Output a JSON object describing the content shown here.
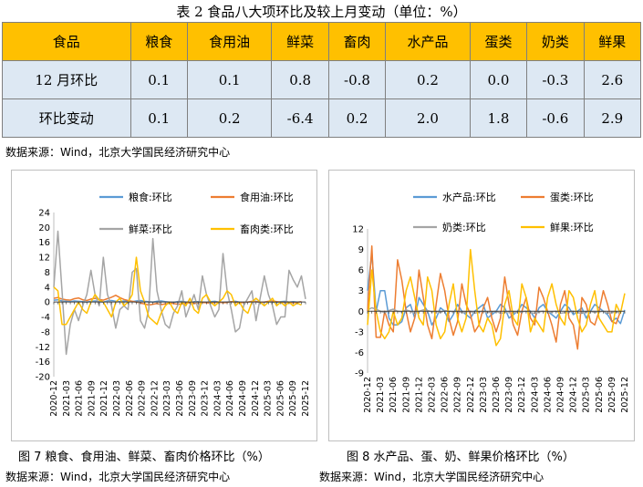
{
  "table": {
    "title": "表 2  食品八大项环比及较上月变动（单位：%）",
    "headers": [
      "食品",
      "粮食",
      "食用油",
      "鲜菜",
      "畜肉",
      "水产品",
      "蛋类",
      "奶类",
      "鲜果"
    ],
    "rows": [
      {
        "label": "12 月环比",
        "values": [
          "0.1",
          "0.1",
          "0.8",
          "-0.8",
          "0.2",
          "0.0",
          "-0.3",
          "2.6"
        ]
      },
      {
        "label": "环比变动",
        "values": [
          "0.1",
          "0.2",
          "-6.4",
          "0.2",
          "2.0",
          "1.8",
          "-0.6",
          "2.9"
        ]
      }
    ],
    "source": "数据来源：Wind，北京大学国民经济研究中心"
  },
  "figures": [
    {
      "caption": "图 7  粮食、食用油、鲜菜、畜肉价格环比（%）",
      "source": "数据来源：Wind，北京大学国民经济研究中心"
    },
    {
      "caption": "图 8 水产品、蛋、奶、鲜果价格环比（%）",
      "source": "数据来源：Wind，北京大学国民经济研究中心"
    }
  ],
  "chart_data": [
    {
      "type": "line",
      "ylim": [
        -20,
        24
      ],
      "yticks": [
        -20,
        -16,
        -12,
        -8,
        -4,
        0,
        4,
        8,
        12,
        16,
        20,
        24
      ],
      "x_labels": [
        "2020-12",
        "2021-03",
        "2021-06",
        "2021-09",
        "2021-12",
        "2022-03",
        "2022-06",
        "2022-09",
        "2022-12",
        "2023-03",
        "2023-06",
        "2023-09",
        "2023-12",
        "2024-03",
        "2024-06",
        "2024-09",
        "2024-12",
        "2025-03",
        "2025-06",
        "2025-09",
        "2025-12"
      ],
      "legend": "top",
      "series": [
        {
          "name": "粮食:环比",
          "color": "#5b9bd5",
          "values": [
            0.5,
            0.6,
            0.3,
            0.2,
            0.1,
            0.3,
            0.2,
            0.1,
            0.0,
            0.2,
            0.3,
            0.1,
            0.0,
            0.3,
            0.4,
            0.2,
            0.1,
            0.3,
            0.2,
            0.1,
            0.3,
            0.4,
            0.2,
            0.1,
            0.0,
            0.2,
            0.3,
            0.1,
            0.0,
            -0.1,
            0.1,
            0.2,
            0.0,
            -0.2,
            0.1,
            0.1,
            0.0,
            -0.1,
            0.1,
            0.2,
            0.0,
            -0.1,
            0.0,
            0.1,
            0.2,
            0.0,
            -0.1,
            0.0,
            0.1,
            0.2,
            -0.1,
            0.0,
            0.1,
            0.0,
            -0.1,
            0.1,
            0.2,
            0.0,
            0.1,
            0.0,
            0.1
          ]
        },
        {
          "name": "食用油:环比",
          "color": "#ed7d31",
          "values": [
            1.0,
            1.2,
            0.8,
            0.6,
            0.5,
            0.9,
            1.1,
            0.6,
            0.4,
            0.8,
            1.0,
            0.7,
            0.5,
            0.9,
            1.3,
            1.8,
            1.2,
            0.7,
            0.4,
            0.2,
            0.0,
            -0.3,
            -0.5,
            -0.8,
            -0.6,
            -0.4,
            -0.7,
            -0.5,
            -0.3,
            -0.4,
            -0.6,
            -0.5,
            -0.3,
            -0.2,
            -0.4,
            -0.3,
            -0.1,
            -0.2,
            -0.3,
            -0.1,
            0.0,
            -0.2,
            -0.1,
            0.1,
            0.0,
            -0.2,
            -0.1,
            0.0,
            0.2,
            0.1,
            -0.1,
            0.0,
            0.2,
            0.3,
            0.1,
            0.0,
            -0.1,
            0.0,
            -0.2,
            -0.1,
            0.1
          ]
        },
        {
          "name": "鲜菜:环比",
          "color": "#a5a5a5",
          "values": [
            4.0,
            19.0,
            3.0,
            -14.0,
            -6.0,
            -2.0,
            -5.0,
            -1.0,
            2.0,
            8.5,
            2.0,
            -1.0,
            12.0,
            2.0,
            -1.0,
            -7.0,
            -2.0,
            -1.0,
            -2.0,
            8.0,
            9.0,
            -5.0,
            -7.0,
            -2.0,
            17.0,
            3.0,
            -2.0,
            -6.0,
            -7.0,
            -3.0,
            -1.0,
            3.0,
            -4.0,
            -1.0,
            2.0,
            -2.0,
            7.0,
            2.0,
            -1.0,
            -4.0,
            -2.0,
            13.0,
            3.0,
            -2.0,
            -8.0,
            -7.0,
            -1.0,
            1.0,
            3.0,
            -5.0,
            1.0,
            7.0,
            2.0,
            -1.0,
            -6.0,
            -4.0,
            -4.0,
            8.5,
            6.0,
            4.0,
            7.0,
            0.8
          ]
        },
        {
          "name": "畜肉类:环比",
          "color": "#ffc000",
          "values": [
            4.0,
            3.0,
            -6.0,
            -6.0,
            -4.0,
            -2.0,
            0.0,
            -2.0,
            -3.0,
            0.0,
            2.0,
            0.5,
            0.0,
            -2.0,
            -4.0,
            0.0,
            1.0,
            -1.0,
            0.0,
            2.0,
            12.0,
            3.0,
            0.0,
            -4.0,
            -5.0,
            -6.0,
            -3.0,
            -1.0,
            0.0,
            -2.0,
            -3.0,
            0.0,
            -1.0,
            1.0,
            -2.0,
            -3.0,
            1.0,
            2.0,
            0.0,
            -1.0,
            0.0,
            1.0,
            3.0,
            2.0,
            -1.0,
            0.0,
            -2.0,
            -3.0,
            0.0,
            1.0,
            0.0,
            -1.0,
            0.0,
            1.0,
            -1.0,
            0.0,
            -1.0,
            0.0,
            -1.0,
            -0.3,
            -0.8
          ]
        }
      ]
    },
    {
      "type": "line",
      "ylim": [
        -9,
        12
      ],
      "yticks": [
        -9,
        -6,
        -3,
        0,
        3,
        6,
        9,
        12
      ],
      "x_labels": [
        "2020-12",
        "2021-03",
        "2021-06",
        "2021-09",
        "2021-12",
        "2022-03",
        "2022-06",
        "2022-09",
        "2022-12",
        "2023-03",
        "2023-06",
        "2023-09",
        "2023-12",
        "2024-03",
        "2024-06",
        "2024-09",
        "2024-12",
        "2025-03",
        "2025-06",
        "2025-09",
        "2025-12"
      ],
      "legend": "top",
      "series": [
        {
          "name": "水产品:环比",
          "color": "#5b9bd5",
          "values": [
            3.0,
            8.5,
            0.0,
            3.0,
            3.0,
            -1.0,
            -2.0,
            -2.0,
            -1.5,
            0.5,
            1.0,
            -1.0,
            2.0,
            1.0,
            0.0,
            -2.0,
            -1.0,
            0.5,
            0.0,
            -1.5,
            -0.5,
            1.0,
            0.0,
            -0.5,
            -1.0,
            0.0,
            0.5,
            1.0,
            -1.0,
            -0.5,
            0.0,
            1.0,
            0.5,
            -1.0,
            -0.5,
            0.0,
            1.0,
            0.5,
            0.0,
            -1.0,
            0.5,
            1.0,
            0.0,
            -0.5,
            -1.0,
            0.0,
            1.0,
            0.5,
            -0.5,
            0.0,
            0.5,
            -1.0,
            0.0,
            1.0,
            0.5,
            0.0,
            -0.5,
            -1.5,
            -1.0,
            -1.8,
            0.2
          ]
        },
        {
          "name": "蛋类:环比",
          "color": "#ed7d31",
          "values": [
            0.0,
            9.5,
            -3.8,
            -3.8,
            0.0,
            -2.0,
            -3.0,
            7.5,
            4.5,
            0.0,
            -3.0,
            -1.0,
            6.0,
            2.0,
            -2.0,
            -4.0,
            1.0,
            5.5,
            3.0,
            -1.0,
            -3.5,
            -1.5,
            4.0,
            1.0,
            -0.5,
            -3.0,
            -2.0,
            0.5,
            2.0,
            -1.0,
            -3.0,
            -1.0,
            5.0,
            1.0,
            -2.0,
            -3.5,
            0.0,
            2.0,
            -1.0,
            -2.0,
            3.5,
            2.0,
            0.0,
            -2.0,
            -4.5,
            1.0,
            3.0,
            -1.0,
            -2.0,
            -5.5,
            2.0,
            1.0,
            -1.5,
            -2.0,
            0.0,
            3.0,
            1.0,
            -1.5,
            -1.8,
            0.0
          ]
        },
        {
          "name": "奶类:环比",
          "color": "#a5a5a5",
          "values": [
            0.2,
            0.5,
            0.3,
            0.0,
            -0.2,
            0.1,
            0.3,
            0.0,
            -0.1,
            0.2,
            0.0,
            -0.3,
            0.0,
            0.2,
            0.1,
            -0.1,
            0.0,
            -0.2,
            0.1,
            0.0,
            -0.1,
            0.0,
            -0.2,
            -0.1,
            0.0,
            -0.3,
            -0.1,
            0.0,
            -0.2,
            -0.1,
            0.0,
            -0.3,
            -0.2,
            0.0,
            -0.1,
            -0.2,
            -0.1,
            0.0,
            -0.2,
            -0.3,
            -0.1,
            0.0,
            -0.2,
            -0.1,
            0.0,
            -0.3,
            -0.2,
            -0.1,
            0.0,
            -0.2,
            -0.3,
            -0.1,
            0.0,
            -0.2,
            -0.1,
            0.0,
            -0.3,
            -0.2,
            -0.1,
            -0.3
          ]
        },
        {
          "name": "鲜果:环比",
          "color": "#ffc000",
          "values": [
            -2.0,
            6.0,
            0.0,
            -3.0,
            -4.0,
            -3.0,
            0.0,
            -2.0,
            -1.0,
            3.0,
            5.0,
            2.0,
            -1.0,
            -2.0,
            5.0,
            3.0,
            -2.0,
            -4.0,
            -3.0,
            1.0,
            4.0,
            -1.0,
            -3.0,
            -1.0,
            9.0,
            3.0,
            -2.0,
            -3.0,
            -1.0,
            -2.0,
            -5.0,
            -4.0,
            1.0,
            3.0,
            -1.0,
            -2.0,
            4.0,
            2.0,
            -3.0,
            -1.0,
            -2.0,
            -3.0,
            2.0,
            4.0,
            1.0,
            -1.0,
            -2.0,
            3.0,
            2.0,
            -1.0,
            -3.0,
            -2.0,
            1.0,
            3.0,
            -1.0,
            -2.0,
            -3.0,
            -3.0,
            1.0,
            -0.3,
            2.6
          ]
        }
      ]
    }
  ]
}
